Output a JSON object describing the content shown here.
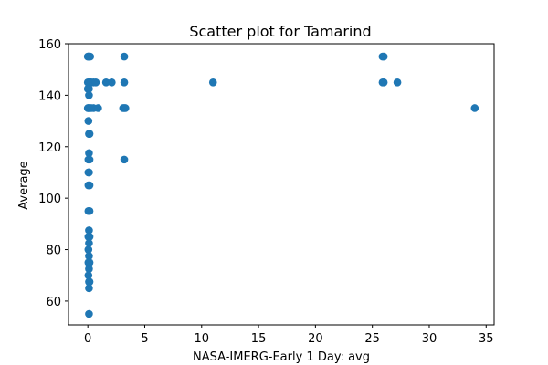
{
  "chart_data": {
    "type": "scatter",
    "title": "Scatter plot for Tamarind",
    "xlabel": "NASA-IMERG-Early 1 Day: avg",
    "ylabel": "Average",
    "xlim": [
      -1.7,
      35.7
    ],
    "ylim": [
      50.75,
      160
    ],
    "xticks": [
      0,
      5,
      10,
      15,
      20,
      25,
      30,
      35
    ],
    "yticks": [
      60,
      80,
      100,
      120,
      140,
      160
    ],
    "grid": false,
    "marker_color": "#1f77b4",
    "points": [
      {
        "x": 0.0,
        "y": 155
      },
      {
        "x": 0.05,
        "y": 155
      },
      {
        "x": 0.1,
        "y": 155
      },
      {
        "x": 0.2,
        "y": 155
      },
      {
        "x": 0.0,
        "y": 145
      },
      {
        "x": 0.1,
        "y": 145
      },
      {
        "x": 0.2,
        "y": 145
      },
      {
        "x": 0.3,
        "y": 145
      },
      {
        "x": 0.5,
        "y": 145
      },
      {
        "x": 0.7,
        "y": 145
      },
      {
        "x": 1.6,
        "y": 145
      },
      {
        "x": 2.1,
        "y": 145
      },
      {
        "x": 0.0,
        "y": 142.5
      },
      {
        "x": 0.1,
        "y": 142.5
      },
      {
        "x": 0.1,
        "y": 140
      },
      {
        "x": 0.0,
        "y": 135
      },
      {
        "x": 0.05,
        "y": 135
      },
      {
        "x": 0.15,
        "y": 135
      },
      {
        "x": 0.3,
        "y": 135
      },
      {
        "x": 0.5,
        "y": 135
      },
      {
        "x": 0.9,
        "y": 135
      },
      {
        "x": 0.05,
        "y": 130
      },
      {
        "x": 0.1,
        "y": 125
      },
      {
        "x": 0.15,
        "y": 125
      },
      {
        "x": 0.1,
        "y": 117.5
      },
      {
        "x": 0.05,
        "y": 115
      },
      {
        "x": 0.15,
        "y": 115
      },
      {
        "x": 0.05,
        "y": 110
      },
      {
        "x": 0.1,
        "y": 110
      },
      {
        "x": 0.05,
        "y": 105
      },
      {
        "x": 0.15,
        "y": 105
      },
      {
        "x": 0.05,
        "y": 95
      },
      {
        "x": 0.15,
        "y": 95
      },
      {
        "x": 0.1,
        "y": 87.5
      },
      {
        "x": 0.15,
        "y": 85
      },
      {
        "x": 0.05,
        "y": 85
      },
      {
        "x": 0.1,
        "y": 82.5
      },
      {
        "x": 0.05,
        "y": 80
      },
      {
        "x": 0.1,
        "y": 77.5
      },
      {
        "x": 0.05,
        "y": 75
      },
      {
        "x": 0.15,
        "y": 75
      },
      {
        "x": 0.1,
        "y": 72.5
      },
      {
        "x": 0.05,
        "y": 70
      },
      {
        "x": 0.1,
        "y": 67.5
      },
      {
        "x": 0.15,
        "y": 67.5
      },
      {
        "x": 0.1,
        "y": 65
      },
      {
        "x": 0.1,
        "y": 55
      },
      {
        "x": 3.2,
        "y": 155
      },
      {
        "x": 3.2,
        "y": 145
      },
      {
        "x": 3.1,
        "y": 135
      },
      {
        "x": 3.2,
        "y": 135
      },
      {
        "x": 3.3,
        "y": 135
      },
      {
        "x": 3.2,
        "y": 115
      },
      {
        "x": 11.0,
        "y": 145
      },
      {
        "x": 25.9,
        "y": 155
      },
      {
        "x": 26.0,
        "y": 155
      },
      {
        "x": 25.9,
        "y": 145
      },
      {
        "x": 26.0,
        "y": 145
      },
      {
        "x": 27.2,
        "y": 145
      },
      {
        "x": 34.0,
        "y": 135
      }
    ]
  }
}
